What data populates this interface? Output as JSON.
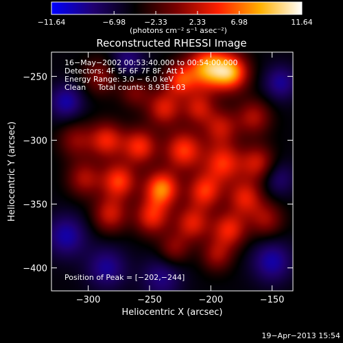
{
  "chart_data": {
    "type": "heatmap",
    "colorbar": {
      "ticks": [
        "−11.64",
        "−6.98",
        "−2.33",
        "2.33",
        "6.98",
        "11.64"
      ],
      "unit_label": "(photons cm⁻² s⁻¹ asec⁻²)",
      "range": [
        -11.64,
        11.64
      ],
      "colormap": [
        "#0000ff",
        "#200070",
        "#000000",
        "#7a0000",
        "#ff2000",
        "#ffb000",
        "#ffffff"
      ]
    },
    "title": "Reconstructed RHESSI Image",
    "xlabel": "Heliocentric X (arcsec)",
    "ylabel": "Heliocentric Y (arcsec)",
    "xlim": [
      -330,
      -133
    ],
    "ylim": [
      -418,
      -231
    ],
    "x_ticks": [
      -300,
      -250,
      -200,
      -150
    ],
    "y_ticks": [
      -250,
      -300,
      -350,
      -400
    ],
    "x_tick_labels": [
      "−300",
      "−250",
      "−200",
      "−150"
    ],
    "y_tick_labels": [
      "−250",
      "−300",
      "−350",
      "−400"
    ],
    "info_lines": [
      "16−May−2002 00:53:40.000 to 00:54:00.000",
      "Detectors: 4F 5F 6F 7F 8F, Att 1",
      "Energy Range: 3.0 − 6.0 keV",
      "Clean     Total counts: 8.93E+03"
    ],
    "peak_label": "Position of Peak = [−202,−244]",
    "peak": {
      "x": -202,
      "y": -244
    },
    "sources": [
      {
        "x": -202,
        "y": -244,
        "amp": 11.6,
        "sigma": 12
      },
      {
        "x": -183,
        "y": -247,
        "amp": 10.0,
        "sigma": 10
      },
      {
        "x": -225,
        "y": -253,
        "amp": 7.5,
        "sigma": 9
      },
      {
        "x": -290,
        "y": -250,
        "amp": 4.5,
        "sigma": 10
      },
      {
        "x": -262,
        "y": -262,
        "amp": 4.0,
        "sigma": 9
      },
      {
        "x": -238,
        "y": -275,
        "amp": 7.0,
        "sigma": 10
      },
      {
        "x": -210,
        "y": -275,
        "amp": 6.0,
        "sigma": 9
      },
      {
        "x": -192,
        "y": -290,
        "amp": 6.0,
        "sigma": 10
      },
      {
        "x": -165,
        "y": -282,
        "amp": 5.5,
        "sigma": 10
      },
      {
        "x": -310,
        "y": -300,
        "amp": 4.5,
        "sigma": 10
      },
      {
        "x": -285,
        "y": -300,
        "amp": 7.5,
        "sigma": 10
      },
      {
        "x": -258,
        "y": -305,
        "amp": 8.0,
        "sigma": 10
      },
      {
        "x": -222,
        "y": -308,
        "amp": 8.5,
        "sigma": 11
      },
      {
        "x": -190,
        "y": -318,
        "amp": 8.0,
        "sigma": 11
      },
      {
        "x": -162,
        "y": -318,
        "amp": 6.5,
        "sigma": 10
      },
      {
        "x": -303,
        "y": -330,
        "amp": 5.5,
        "sigma": 10
      },
      {
        "x": -275,
        "y": -332,
        "amp": 8.5,
        "sigma": 10
      },
      {
        "x": -240,
        "y": -338,
        "amp": 10.5,
        "sigma": 10
      },
      {
        "x": -205,
        "y": -340,
        "amp": 8.0,
        "sigma": 10
      },
      {
        "x": -172,
        "y": -345,
        "amp": 7.0,
        "sigma": 10
      },
      {
        "x": -282,
        "y": -358,
        "amp": 6.5,
        "sigma": 10
      },
      {
        "x": -248,
        "y": -360,
        "amp": 7.5,
        "sigma": 10
      },
      {
        "x": -215,
        "y": -365,
        "amp": 7.0,
        "sigma": 10
      },
      {
        "x": -185,
        "y": -370,
        "amp": 7.5,
        "sigma": 10
      },
      {
        "x": -155,
        "y": -362,
        "amp": 5.0,
        "sigma": 10
      },
      {
        "x": -230,
        "y": -385,
        "amp": 4.5,
        "sigma": 9
      },
      {
        "x": -195,
        "y": -390,
        "amp": 5.0,
        "sigma": 9
      },
      {
        "x": -318,
        "y": -270,
        "amp": -5.0,
        "sigma": 10
      },
      {
        "x": -318,
        "y": -375,
        "amp": -5.0,
        "sigma": 12
      },
      {
        "x": -285,
        "y": -400,
        "amp": -4.5,
        "sigma": 12
      },
      {
        "x": -240,
        "y": -408,
        "amp": -4.0,
        "sigma": 12
      },
      {
        "x": -150,
        "y": -395,
        "amp": -5.0,
        "sigma": 12
      },
      {
        "x": -143,
        "y": -255,
        "amp": -4.5,
        "sigma": 10
      },
      {
        "x": -268,
        "y": -238,
        "amp": -4.0,
        "sigma": 10
      },
      {
        "x": -145,
        "y": -330,
        "amp": -3.5,
        "sigma": 10
      }
    ],
    "grid": false,
    "legend": "colorbar-top"
  },
  "footer": {
    "date": "19−Apr−2013 15:54"
  }
}
